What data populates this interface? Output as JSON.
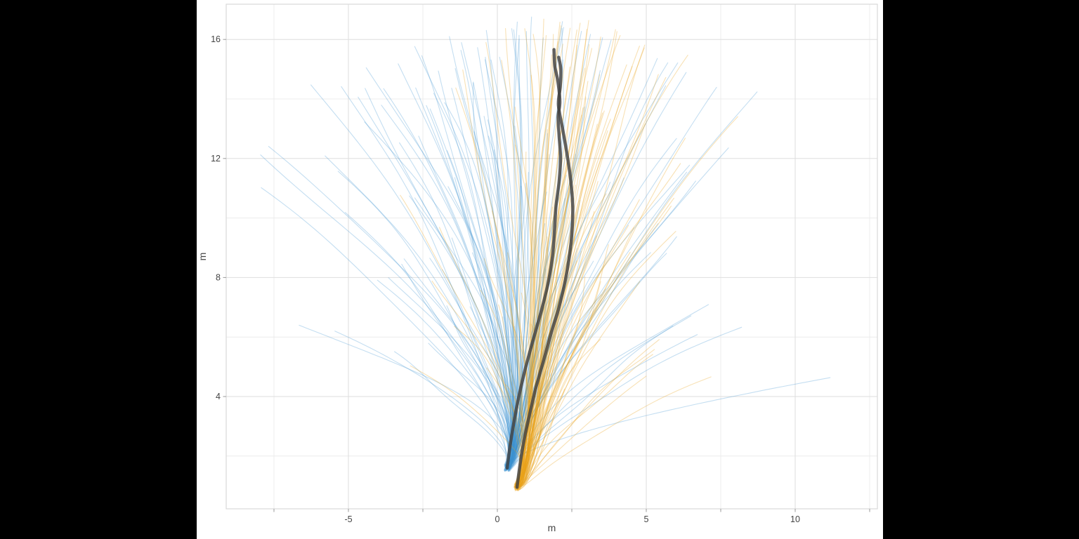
{
  "window": {
    "outer_background": "#000000",
    "canvas_background": "#ffffff"
  },
  "axes_style": {
    "tick_label_color": "#444444",
    "axis_title_color": "#444444",
    "grid_major_color": "#dedede",
    "grid_minor_color": "#ececec",
    "panel_border_color": "#d9d9d9",
    "tick_color": "#999999",
    "tick_label_size": 12.5,
    "axis_title_size": 14
  },
  "chart_data": {
    "type": "line",
    "title": "",
    "xlabel": "m",
    "ylabel": "m",
    "xlim": [
      -9.1,
      12.76
    ],
    "ylim": [
      0.23,
      17.18
    ],
    "x_ticks_major": [
      -5,
      0,
      5,
      10
    ],
    "x_ticks_minor": [
      -7.5,
      -2.5,
      2.5,
      7.5,
      12.5
    ],
    "y_ticks_major": [
      4,
      8,
      12,
      16
    ],
    "y_ticks_minor": [
      2,
      6,
      10,
      14
    ],
    "grid": true,
    "legend": false,
    "description": "Ensemble of simulated 2D trajectories (spaghetti plot): light blue and light orange thin trajectory fans rising from two tight origin points near (0.3,1.6) and (0.7,1.0), plus two thick dark-gray mean trajectories that wiggle upward to about (2, 15.5) and cross near y=14.",
    "series": [
      {
        "name": "blue-trajectory-ensemble",
        "role": "ensemble",
        "color": "#3d92d0",
        "opacity": 0.3,
        "line_width": 1.1,
        "count": 130,
        "seed": 20240917,
        "origin": [
          0.33,
          1.6
        ],
        "origin_jitter": 0.1,
        "end_x_mean": 1.0,
        "end_x_sd": 4.3,
        "end_x_range": [
          -9.05,
          12.7
        ],
        "top_y_max": 16.9,
        "min_y_end": 4.2,
        "lean": [
          0.7,
          1.4
        ],
        "fan_exponent": [
          1.25,
          1.85
        ]
      },
      {
        "name": "orange-trajectory-ensemble",
        "role": "ensemble",
        "color": "#e8a21a",
        "opacity": 0.32,
        "line_width": 1.1,
        "count": 105,
        "seed": 77031,
        "origin": [
          0.66,
          0.95
        ],
        "origin_jitter": 0.1,
        "end_x_mean": 2.2,
        "end_x_sd": 2.5,
        "end_x_range": [
          -4.3,
          8.9
        ],
        "top_y_max": 16.9,
        "min_y_end": 4.2,
        "lean": [
          0.9,
          1.5
        ],
        "fan_exponent": [
          1.25,
          1.85
        ]
      },
      {
        "name": "blue-mean-trajectory",
        "role": "mean",
        "color": "#3f3f3f",
        "opacity": 0.82,
        "line_width": 4.5,
        "points": [
          [
            0.33,
            1.6
          ],
          [
            0.42,
            2.3
          ],
          [
            0.55,
            3.1
          ],
          [
            0.7,
            3.9
          ],
          [
            0.93,
            4.9
          ],
          [
            1.2,
            5.9
          ],
          [
            1.48,
            6.9
          ],
          [
            1.7,
            7.8
          ],
          [
            1.85,
            8.7
          ],
          [
            1.92,
            9.6
          ],
          [
            1.97,
            10.4
          ],
          [
            2.07,
            11.2
          ],
          [
            2.12,
            12.0
          ],
          [
            2.07,
            12.8
          ],
          [
            2.04,
            13.4
          ],
          [
            2.1,
            13.9
          ],
          [
            2.03,
            14.6
          ],
          [
            1.93,
            15.1
          ],
          [
            1.9,
            15.66
          ]
        ]
      },
      {
        "name": "orange-mean-trajectory",
        "role": "mean",
        "color": "#3f3f3f",
        "opacity": 0.82,
        "line_width": 4.5,
        "points": [
          [
            0.66,
            0.95
          ],
          [
            0.76,
            1.7
          ],
          [
            0.89,
            2.5
          ],
          [
            1.06,
            3.3
          ],
          [
            1.27,
            4.2
          ],
          [
            1.52,
            5.1
          ],
          [
            1.8,
            6.1
          ],
          [
            2.07,
            7.0
          ],
          [
            2.28,
            7.9
          ],
          [
            2.43,
            8.8
          ],
          [
            2.51,
            9.6
          ],
          [
            2.53,
            10.4
          ],
          [
            2.46,
            11.3
          ],
          [
            2.33,
            12.2
          ],
          [
            2.19,
            13.0
          ],
          [
            2.05,
            13.8
          ],
          [
            2.11,
            14.4
          ],
          [
            2.13,
            15.0
          ],
          [
            2.06,
            15.4
          ]
        ]
      }
    ]
  }
}
